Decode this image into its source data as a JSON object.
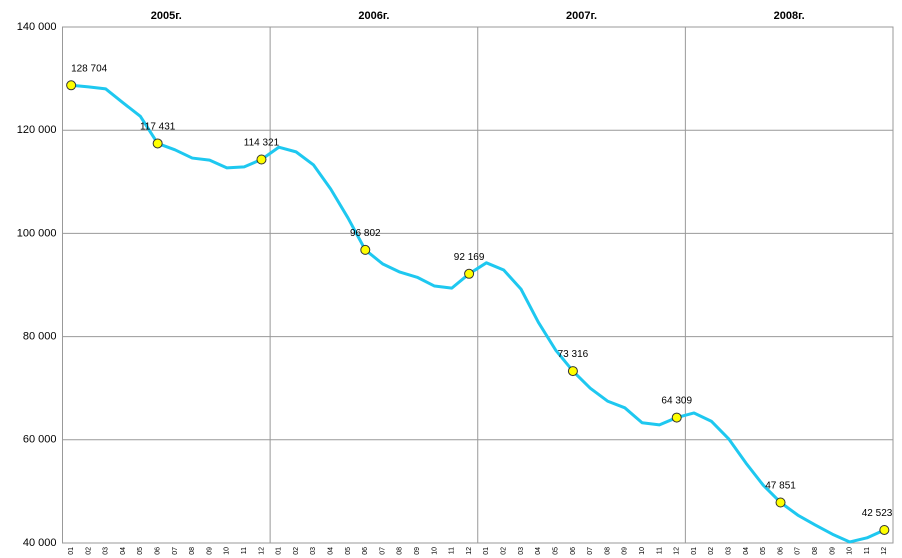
{
  "chart_data": {
    "type": "line",
    "groups": [
      "2005г.",
      "2006г.",
      "2007г.",
      "2008г."
    ],
    "categories": [
      "01",
      "02",
      "03",
      "04",
      "05",
      "06",
      "07",
      "08",
      "09",
      "10",
      "11",
      "12",
      "01",
      "02",
      "03",
      "04",
      "05",
      "06",
      "07",
      "08",
      "09",
      "10",
      "11",
      "12",
      "01",
      "02",
      "03",
      "04",
      "05",
      "06",
      "07",
      "08",
      "09",
      "10",
      "11",
      "12",
      "01",
      "02",
      "03",
      "04",
      "05",
      "06",
      "07",
      "08",
      "09",
      "10",
      "11",
      "12"
    ],
    "series": [
      {
        "color": "#1ec8f0",
        "marker_color": "#ffff00",
        "values": [
          128704,
          128400,
          128000,
          125300,
          122700,
          117431,
          116200,
          114600,
          114200,
          112700,
          112900,
          114321,
          116700,
          115800,
          113300,
          108600,
          103000,
          96802,
          94100,
          92500,
          91500,
          89800,
          89400,
          92169,
          94300,
          92900,
          89200,
          82800,
          77400,
          73316,
          70000,
          67500,
          66200,
          63300,
          62900,
          64309,
          65200,
          63600,
          60200,
          55500,
          51200,
          47851,
          45400,
          43500,
          41700,
          40200,
          41000,
          42523
        ],
        "value_labels": [
          "128 704",
          null,
          null,
          null,
          null,
          "117 431",
          null,
          null,
          null,
          null,
          null,
          "114 321",
          null,
          null,
          null,
          null,
          null,
          "96 802",
          null,
          null,
          null,
          null,
          null,
          "92 169",
          null,
          null,
          null,
          null,
          null,
          "73 316",
          null,
          null,
          null,
          null,
          null,
          "64 309",
          null,
          null,
          null,
          null,
          null,
          "47 851",
          null,
          null,
          null,
          null,
          null,
          "42 523"
        ]
      }
    ],
    "ylim": [
      40000,
      140000
    ],
    "yticks": [
      {
        "value": 40000,
        "label": "40 000"
      },
      {
        "value": 60000,
        "label": "60 000"
      },
      {
        "value": 80000,
        "label": "80 000"
      },
      {
        "value": 100000,
        "label": "100 000"
      },
      {
        "value": 120000,
        "label": "120 000"
      },
      {
        "value": 140000,
        "label": "140 000"
      }
    ],
    "grid": true
  }
}
